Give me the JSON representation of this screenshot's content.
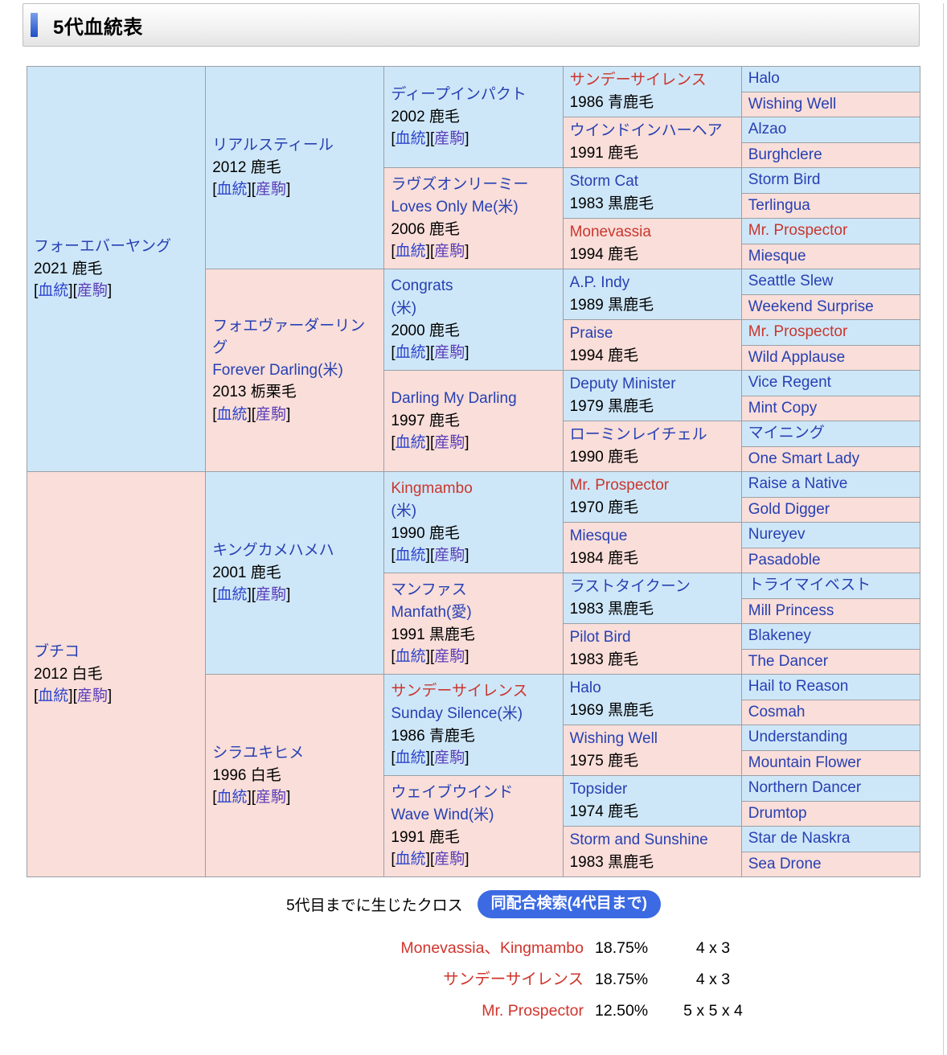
{
  "header": {
    "title": "5代血統表"
  },
  "colors": {
    "blue-bg": "#cee7f8",
    "pink-bg": "#f9ded9",
    "border": "#9aa0a6",
    "link-blue": "#2740b3",
    "link-red": "#ca362e",
    "blood-link": "#2c44cc",
    "progeny-link": "#5b3db8",
    "button-blue": "#3b6ae3",
    "cross-red": "#d0342c"
  },
  "pedigree": {
    "link_labels": {
      "blood": "血統",
      "progeny": "産駒"
    },
    "gen1": [
      {
        "name": "フォーエバーヤング",
        "detail": "2021 鹿毛",
        "links": true,
        "bg": "blue"
      },
      {
        "name": "ブチコ",
        "detail": "2012 白毛",
        "links": true,
        "bg": "pink"
      }
    ],
    "gen2": [
      {
        "name": "リアルスティール",
        "detail": "2012 鹿毛",
        "links": true,
        "bg": "blue"
      },
      {
        "name": "フォエヴァーダーリング",
        "name2": "Forever Darling(米)",
        "detail": "2013 栃栗毛",
        "links": true,
        "bg": "pink"
      },
      {
        "name": "キングカメハメハ",
        "detail": "2001 鹿毛",
        "links": true,
        "bg": "blue"
      },
      {
        "name": "シラユキヒメ",
        "detail": "1996 白毛",
        "links": true,
        "bg": "pink"
      }
    ],
    "gen3": [
      {
        "name": "ディープインパクト",
        "detail": "2002 鹿毛",
        "links": true,
        "bg": "blue"
      },
      {
        "name": "ラヴズオンリーミー",
        "name2": "Loves Only Me(米)",
        "detail": "2006 鹿毛",
        "links": true,
        "bg": "pink"
      },
      {
        "name": "Congrats",
        "name2": "(米)",
        "detail": "2000 鹿毛",
        "links": true,
        "bg": "blue"
      },
      {
        "name": "Darling My Darling",
        "detail": "1997 鹿毛",
        "links": true,
        "bg": "pink"
      },
      {
        "name": "Kingmambo",
        "red": true,
        "name2": "(米)",
        "detail": "1990 鹿毛",
        "links": true,
        "bg": "blue"
      },
      {
        "name": "マンファス",
        "name2": "Manfath(愛)",
        "detail": "1991 黒鹿毛",
        "links": true,
        "bg": "pink"
      },
      {
        "name": "サンデーサイレンス",
        "red": true,
        "name2": "Sunday Silence(米)",
        "detail": "1986 青鹿毛",
        "links": true,
        "bg": "blue"
      },
      {
        "name": "ウェイブウインド",
        "name2": "Wave Wind(米)",
        "detail": "1991 鹿毛",
        "links": true,
        "bg": "pink"
      }
    ],
    "gen4": [
      {
        "name": "サンデーサイレンス",
        "red": true,
        "detail": "1986 青鹿毛",
        "bg": "blue"
      },
      {
        "name": "ウインドインハーヘア",
        "detail": "1991 鹿毛",
        "bg": "pink"
      },
      {
        "name": "Storm Cat",
        "detail": "1983 黒鹿毛",
        "bg": "blue"
      },
      {
        "name": "Monevassia",
        "red": true,
        "detail": "1994 鹿毛",
        "bg": "pink"
      },
      {
        "name": "A.P. Indy",
        "detail": "1989 黒鹿毛",
        "bg": "blue"
      },
      {
        "name": "Praise",
        "detail": "1994 鹿毛",
        "bg": "pink"
      },
      {
        "name": "Deputy Minister",
        "detail": "1979 黒鹿毛",
        "bg": "blue"
      },
      {
        "name": "ローミンレイチェル",
        "detail": "1990 鹿毛",
        "bg": "pink"
      },
      {
        "name": "Mr. Prospector",
        "red": true,
        "detail": "1970 鹿毛",
        "bg": "blue"
      },
      {
        "name": "Miesque",
        "detail": "1984 鹿毛",
        "bg": "pink"
      },
      {
        "name": "ラストタイクーン",
        "detail": "1983 黒鹿毛",
        "bg": "blue"
      },
      {
        "name": "Pilot Bird",
        "detail": "1983 鹿毛",
        "bg": "pink"
      },
      {
        "name": "Halo",
        "detail": "1969 黒鹿毛",
        "bg": "blue"
      },
      {
        "name": "Wishing Well",
        "detail": "1975 鹿毛",
        "bg": "pink"
      },
      {
        "name": "Topsider",
        "detail": "1974 鹿毛",
        "bg": "blue"
      },
      {
        "name": "Storm and Sunshine",
        "detail": "1983 黒鹿毛",
        "bg": "pink"
      }
    ],
    "gen5": [
      {
        "name": "Halo",
        "bg": "blue"
      },
      {
        "name": "Wishing Well",
        "bg": "pink"
      },
      {
        "name": "Alzao",
        "bg": "blue"
      },
      {
        "name": "Burghclere",
        "bg": "pink"
      },
      {
        "name": "Storm Bird",
        "bg": "blue"
      },
      {
        "name": "Terlingua",
        "bg": "pink"
      },
      {
        "name": "Mr. Prospector",
        "red": true,
        "bg": "blue"
      },
      {
        "name": "Miesque",
        "bg": "pink"
      },
      {
        "name": "Seattle Slew",
        "bg": "blue"
      },
      {
        "name": "Weekend Surprise",
        "bg": "pink"
      },
      {
        "name": "Mr. Prospector",
        "red": true,
        "bg": "blue"
      },
      {
        "name": "Wild Applause",
        "bg": "pink"
      },
      {
        "name": "Vice Regent",
        "bg": "blue"
      },
      {
        "name": "Mint Copy",
        "bg": "pink"
      },
      {
        "name": "マイニング",
        "bg": "blue"
      },
      {
        "name": "One Smart Lady",
        "bg": "pink"
      },
      {
        "name": "Raise a Native",
        "bg": "blue"
      },
      {
        "name": "Gold Digger",
        "bg": "pink"
      },
      {
        "name": "Nureyev",
        "bg": "blue"
      },
      {
        "name": "Pasadoble",
        "bg": "pink"
      },
      {
        "name": "トライマイベスト",
        "bg": "blue"
      },
      {
        "name": "Mill Princess",
        "bg": "pink"
      },
      {
        "name": "Blakeney",
        "bg": "blue"
      },
      {
        "name": "The Dancer",
        "bg": "pink"
      },
      {
        "name": "Hail to Reason",
        "bg": "blue"
      },
      {
        "name": "Cosmah",
        "bg": "pink"
      },
      {
        "name": "Understanding",
        "bg": "blue"
      },
      {
        "name": "Mountain Flower",
        "bg": "pink"
      },
      {
        "name": "Northern Dancer",
        "bg": "blue"
      },
      {
        "name": "Drumtop",
        "bg": "pink"
      },
      {
        "name": "Star de Naskra",
        "bg": "blue"
      },
      {
        "name": "Sea Drone",
        "bg": "pink"
      }
    ]
  },
  "cross": {
    "label": "5代目までに生じたクロス",
    "button_label": "同配合検索(4代目まで)",
    "rows": [
      {
        "name": "Monevassia、Kingmambo",
        "pct": "18.75%",
        "pattern": "4 x 3"
      },
      {
        "name": "サンデーサイレンス",
        "pct": "18.75%",
        "pattern": "4 x 3"
      },
      {
        "name": "Mr. Prospector",
        "pct": "12.50%",
        "pattern": "5 x 5 x 4"
      }
    ]
  }
}
